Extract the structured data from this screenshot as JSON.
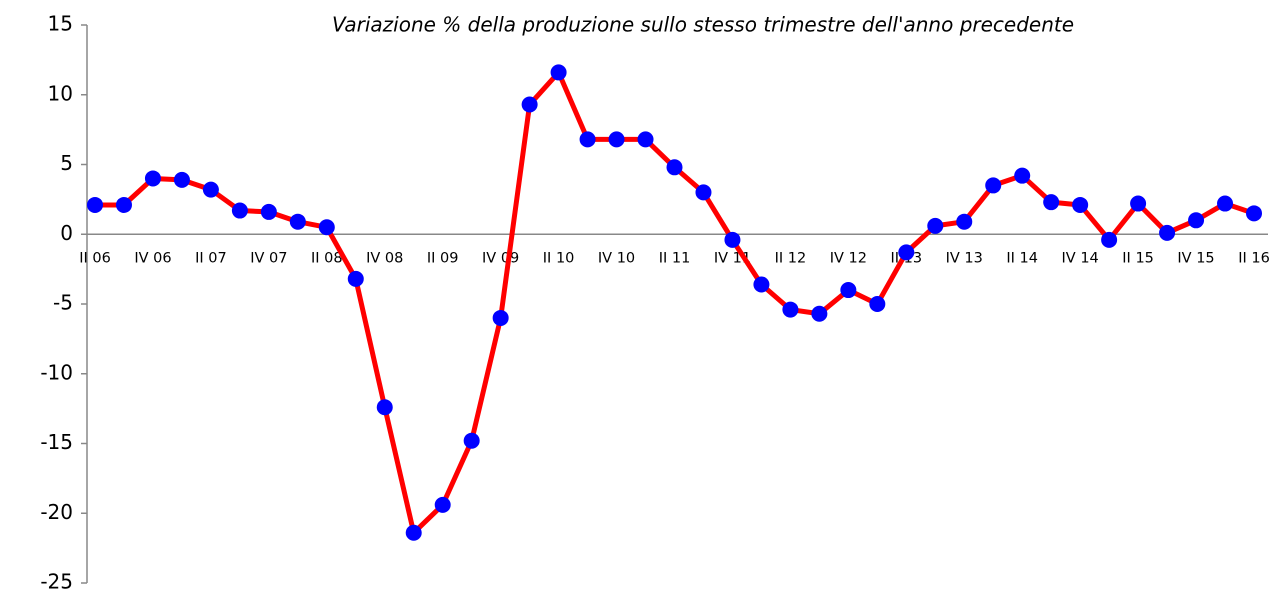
{
  "chart_data": {
    "type": "line",
    "subtitle": "Variazione % della produzione sullo stesso trimestre dell'anno precedente",
    "categories": [
      "II 06",
      null,
      "IV 06",
      null,
      "II 07",
      null,
      "IV 07",
      null,
      "II 08",
      null,
      "IV 08",
      null,
      "II 09",
      null,
      "IV 09",
      null,
      "II 10",
      null,
      "IV 10",
      null,
      "II 11",
      null,
      "IV 11",
      null,
      "II 12",
      null,
      "IV 12",
      null,
      "II 13",
      null,
      "IV 13",
      null,
      "II 14",
      null,
      "IV 14",
      null,
      "II 15",
      null,
      "IV 15",
      null,
      "II 16"
    ],
    "series": [
      {
        "line_color": "#ff0000",
        "color": "#0000ff",
        "values": [
          2.1,
          2.1,
          4.0,
          3.9,
          3.2,
          1.7,
          1.6,
          0.9,
          0.5,
          -3.2,
          -12.4,
          -21.4,
          -19.4,
          -14.8,
          -6.0,
          9.3,
          11.6,
          6.8,
          6.8,
          6.8,
          4.8,
          3.0,
          -0.4,
          -3.6,
          -5.4,
          -5.7,
          -4.0,
          -5.0,
          -1.3,
          0.6,
          0.9,
          3.5,
          4.2,
          2.3,
          2.1,
          -0.4,
          2.2,
          0.1,
          1.0,
          2.2,
          1.5
        ]
      }
    ],
    "ylim": [
      -25,
      15
    ],
    "yticks": [
      -25,
      -20,
      -15,
      -10,
      -5,
      0,
      5,
      10,
      15
    ],
    "grid": false
  }
}
